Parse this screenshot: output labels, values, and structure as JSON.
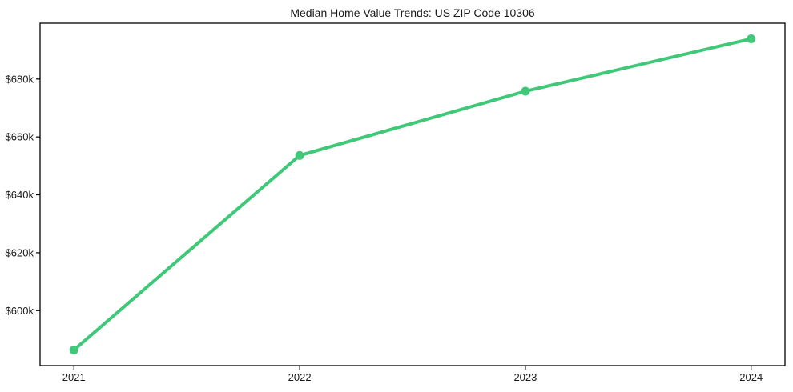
{
  "figure": {
    "background": "#ffffff",
    "border_color": "#000000",
    "text_color": "#1a1a1a"
  },
  "chart_data": {
    "type": "line",
    "title": "Median Home Value Trends: US ZIP Code 10306",
    "xlabel": "",
    "ylabel": "",
    "grid": false,
    "legend": "none",
    "marker": "circle",
    "line_color": "#3ec878",
    "x": [
      2021,
      2022,
      2023,
      2024
    ],
    "x_tick_labels": [
      "2021",
      "2022",
      "2023",
      "2024"
    ],
    "series": [
      {
        "name": "Median home value",
        "values": [
          586400,
          653600,
          675800,
          693900
        ]
      }
    ],
    "y_ticks": [
      600000,
      620000,
      640000,
      660000,
      680000
    ],
    "y_tick_labels": [
      "$600k",
      "$620k",
      "$640k",
      "$660k",
      "$680k"
    ],
    "xlim": [
      2020.85,
      2024.15
    ],
    "ylim": [
      581000,
      699300
    ]
  }
}
